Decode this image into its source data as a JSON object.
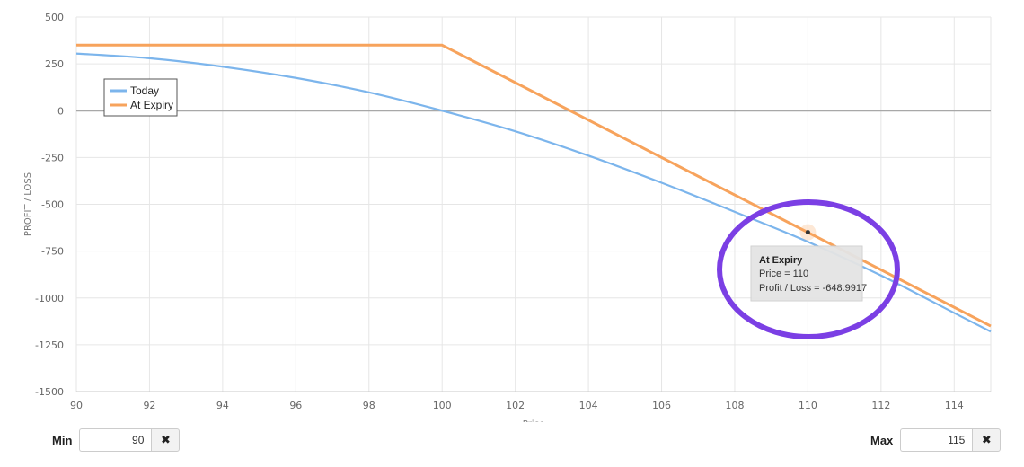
{
  "chart_data": {
    "type": "line",
    "xlabel": "Price",
    "ylabel": "PROFIT / LOSS",
    "xlim": [
      90,
      115
    ],
    "ylim": [
      -1500,
      500
    ],
    "x_ticks": [
      90,
      92,
      94,
      96,
      98,
      100,
      102,
      104,
      106,
      108,
      110,
      112,
      114
    ],
    "y_ticks": [
      500,
      250,
      0,
      -250,
      -500,
      -750,
      -1000,
      -1250,
      -1500
    ],
    "grid": true,
    "legend_position": "top-left",
    "series": [
      {
        "name": "Today",
        "color": "#7cb5ec",
        "x": [
          90,
          92,
          94,
          96,
          98,
          100,
          102,
          104,
          106,
          108,
          110,
          112,
          114,
          115
        ],
        "y": [
          305,
          280,
          235,
          175,
          98,
          0,
          -110,
          -240,
          -385,
          -540,
          -700,
          -880,
          -1080,
          -1180
        ]
      },
      {
        "name": "At Expiry",
        "color": "#f7a35c",
        "x": [
          90,
          100,
          115
        ],
        "y": [
          350,
          350,
          -1150
        ]
      }
    ],
    "tooltip": {
      "title": "At Expiry",
      "line1": "Price = 110",
      "line2": "Profit / Loss = -648.9917",
      "x": 110,
      "y": -648.9917
    },
    "highlight_color": "#7b3fe4"
  },
  "controls": {
    "min_label": "Min",
    "min_value": "90",
    "max_label": "Max",
    "max_value": "115",
    "clear_symbol": "✖"
  }
}
